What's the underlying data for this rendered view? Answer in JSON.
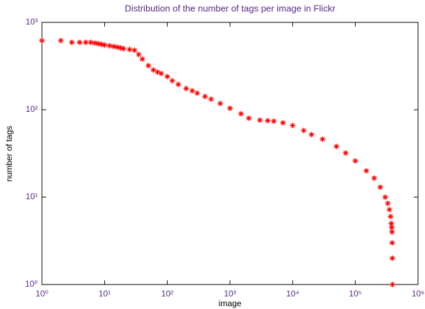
{
  "chart_data": {
    "type": "scatter",
    "title": "Distribution of the number of tags per image in Flickr",
    "xlabel": "image",
    "ylabel": "number of tags",
    "xscale": "log",
    "yscale": "log",
    "marker": "asterisk",
    "xlim": [
      1,
      1000000
    ],
    "xticks": [
      {
        "value": 1,
        "label": "10⁰"
      },
      {
        "value": 10,
        "label": "10¹"
      },
      {
        "value": 100,
        "label": "10²"
      },
      {
        "value": 1000,
        "label": "10³"
      },
      {
        "value": 10000,
        "label": "10⁴"
      },
      {
        "value": 100000,
        "label": "10⁵"
      },
      {
        "value": 1000000,
        "label": "10⁶"
      }
    ],
    "ylim": [
      1,
      1000
    ],
    "yticks": [
      {
        "value": 1,
        "label": "10⁰"
      },
      {
        "value": 10,
        "label": "10¹"
      },
      {
        "value": 100,
        "label": "10²"
      },
      {
        "value": 1000,
        "label": "10³"
      }
    ],
    "series": [
      {
        "color": "#ff0000",
        "x": [
          1,
          2,
          3,
          4,
          5,
          6,
          7,
          8,
          9,
          10,
          12,
          14,
          16,
          18,
          20,
          25,
          30,
          35,
          40,
          50,
          60,
          70,
          80,
          100,
          120,
          150,
          200,
          250,
          300,
          400,
          500,
          700,
          1000,
          1500,
          2000,
          3000,
          4000,
          5000,
          7000,
          10000,
          15000,
          20000,
          30000,
          50000,
          70000,
          100000,
          150000,
          200000,
          250000,
          300000,
          330000,
          350000,
          365000,
          375000,
          380000,
          385000,
          388000,
          390000,
          392000
        ],
        "values": [
          620,
          620,
          590,
          590,
          590,
          590,
          580,
          570,
          560,
          550,
          540,
          530,
          520,
          510,
          500,
          490,
          480,
          430,
          380,
          320,
          285,
          270,
          260,
          240,
          215,
          195,
          175,
          165,
          155,
          142,
          132,
          118,
          104,
          90,
          80,
          76,
          75,
          74,
          71,
          66,
          58,
          52,
          46,
          38,
          32,
          26,
          20,
          16.5,
          13,
          10,
          8.5,
          7.2,
          6,
          5,
          4.5,
          4,
          3,
          2,
          1
        ]
      }
    ]
  }
}
